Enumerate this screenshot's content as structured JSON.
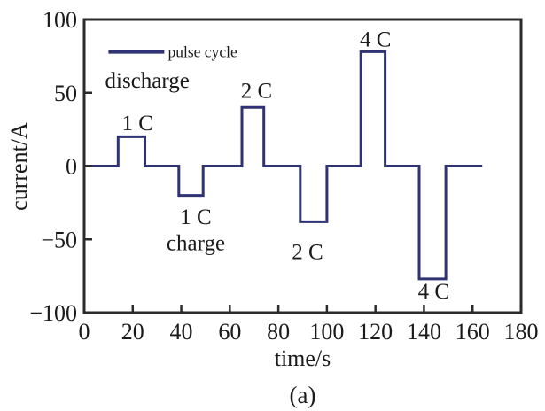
{
  "figure": {
    "caption": "(a)"
  },
  "chart_data": {
    "type": "line",
    "title": "",
    "xlabel": "time/s",
    "ylabel": "current/A",
    "xlim": [
      0,
      180
    ],
    "ylim": [
      -100,
      100
    ],
    "x_ticks": [
      0,
      20,
      40,
      60,
      80,
      100,
      120,
      140,
      160,
      180
    ],
    "y_ticks": [
      -100,
      -50,
      0,
      50,
      100
    ],
    "grid": false,
    "line_color": "#2f3273",
    "axis_color": "#2b2b2b",
    "text_color": "#1a1a1a",
    "legend": {
      "label": "pulse cycle",
      "position": "upper-left-inside",
      "y": 78,
      "line_x": [
        10,
        33
      ],
      "text_x": 34.5
    },
    "series": [
      {
        "name": "pulse cycle",
        "step_points": [
          [
            0,
            0
          ],
          [
            14,
            0
          ],
          [
            14,
            20
          ],
          [
            25,
            20
          ],
          [
            25,
            0
          ],
          [
            39,
            0
          ],
          [
            39,
            -20
          ],
          [
            49,
            -20
          ],
          [
            49,
            0
          ],
          [
            65,
            0
          ],
          [
            65,
            40
          ],
          [
            74,
            40
          ],
          [
            74,
            0
          ],
          [
            89,
            0
          ],
          [
            89,
            -38
          ],
          [
            100,
            -38
          ],
          [
            100,
            0
          ],
          [
            114,
            0
          ],
          [
            114,
            78
          ],
          [
            124,
            78
          ],
          [
            124,
            0
          ],
          [
            138,
            0
          ],
          [
            138,
            -77
          ],
          [
            149,
            -77
          ],
          [
            149,
            0
          ],
          [
            164,
            0
          ]
        ]
      }
    ],
    "annotations": [
      {
        "text": "discharge",
        "x": 26,
        "y": 59
      },
      {
        "text": "1 C",
        "x": 22,
        "y": 30
      },
      {
        "text": "2 C",
        "x": 71,
        "y": 52
      },
      {
        "text": "4 C",
        "x": 120,
        "y": 87
      },
      {
        "text": "1 C",
        "x": 46,
        "y": -34
      },
      {
        "text": "charge",
        "x": 46,
        "y": -52
      },
      {
        "text": "2 C",
        "x": 92,
        "y": -58
      },
      {
        "text": "4 C",
        "x": 144,
        "y": -85
      }
    ]
  }
}
